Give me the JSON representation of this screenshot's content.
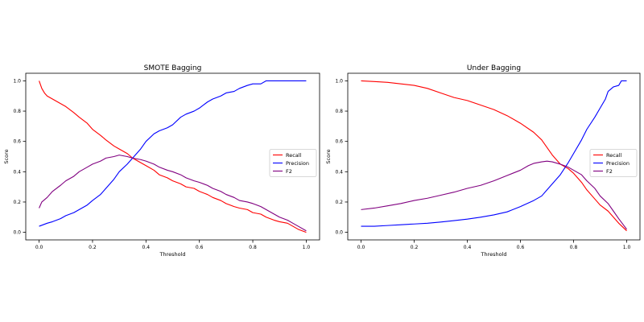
{
  "chart_data": [
    {
      "type": "line",
      "title": "SMOTE Bagging",
      "xlabel": "Threshold",
      "ylabel": "Score",
      "xlim": [
        -0.05,
        1.05
      ],
      "ylim": [
        -0.05,
        1.05
      ],
      "xticks": [
        0.0,
        0.2,
        0.4,
        0.6,
        0.8,
        1.0
      ],
      "yticks": [
        0.0,
        0.2,
        0.4,
        0.6,
        0.8,
        1.0
      ],
      "legend": "center-right",
      "series": [
        {
          "name": "Recall",
          "color": "#ff0000",
          "x": [
            0.0,
            0.01,
            0.02,
            0.03,
            0.05,
            0.07,
            0.1,
            0.13,
            0.15,
            0.18,
            0.2,
            0.23,
            0.25,
            0.28,
            0.3,
            0.33,
            0.35,
            0.38,
            0.4,
            0.43,
            0.45,
            0.48,
            0.5,
            0.53,
            0.55,
            0.58,
            0.6,
            0.63,
            0.65,
            0.68,
            0.7,
            0.73,
            0.75,
            0.78,
            0.8,
            0.83,
            0.85,
            0.88,
            0.9,
            0.93,
            0.95,
            0.97,
            1.0
          ],
          "y": [
            1.0,
            0.95,
            0.92,
            0.9,
            0.88,
            0.86,
            0.83,
            0.79,
            0.76,
            0.72,
            0.68,
            0.64,
            0.61,
            0.57,
            0.55,
            0.52,
            0.49,
            0.46,
            0.44,
            0.41,
            0.38,
            0.36,
            0.34,
            0.32,
            0.3,
            0.29,
            0.27,
            0.25,
            0.23,
            0.21,
            0.19,
            0.17,
            0.16,
            0.15,
            0.13,
            0.12,
            0.1,
            0.08,
            0.07,
            0.06,
            0.04,
            0.02,
            0.0
          ]
        },
        {
          "name": "Precision",
          "color": "#0000ff",
          "x": [
            0.0,
            0.03,
            0.05,
            0.08,
            0.1,
            0.13,
            0.15,
            0.18,
            0.2,
            0.23,
            0.25,
            0.28,
            0.3,
            0.33,
            0.35,
            0.38,
            0.4,
            0.43,
            0.45,
            0.48,
            0.5,
            0.53,
            0.55,
            0.58,
            0.6,
            0.63,
            0.65,
            0.68,
            0.7,
            0.73,
            0.75,
            0.78,
            0.8,
            0.83,
            0.85,
            0.88,
            0.9,
            0.93,
            0.95,
            1.0
          ],
          "y": [
            0.04,
            0.06,
            0.07,
            0.09,
            0.11,
            0.13,
            0.15,
            0.18,
            0.21,
            0.25,
            0.29,
            0.35,
            0.4,
            0.45,
            0.49,
            0.55,
            0.6,
            0.65,
            0.67,
            0.69,
            0.71,
            0.76,
            0.78,
            0.8,
            0.82,
            0.86,
            0.88,
            0.9,
            0.92,
            0.93,
            0.95,
            0.97,
            0.98,
            0.98,
            1.0,
            1.0,
            1.0,
            1.0,
            1.0,
            1.0
          ]
        },
        {
          "name": "F2",
          "color": "#800080",
          "x": [
            0.0,
            0.01,
            0.03,
            0.05,
            0.08,
            0.1,
            0.13,
            0.15,
            0.18,
            0.2,
            0.23,
            0.25,
            0.28,
            0.3,
            0.33,
            0.35,
            0.38,
            0.4,
            0.43,
            0.45,
            0.48,
            0.5,
            0.53,
            0.55,
            0.58,
            0.6,
            0.63,
            0.65,
            0.68,
            0.7,
            0.73,
            0.75,
            0.78,
            0.8,
            0.83,
            0.85,
            0.88,
            0.9,
            0.93,
            0.95,
            0.97,
            1.0
          ],
          "y": [
            0.16,
            0.2,
            0.23,
            0.27,
            0.31,
            0.34,
            0.37,
            0.4,
            0.43,
            0.45,
            0.47,
            0.49,
            0.5,
            0.51,
            0.5,
            0.49,
            0.48,
            0.47,
            0.45,
            0.43,
            0.41,
            0.4,
            0.38,
            0.36,
            0.34,
            0.33,
            0.31,
            0.29,
            0.27,
            0.25,
            0.23,
            0.21,
            0.2,
            0.19,
            0.17,
            0.15,
            0.12,
            0.1,
            0.08,
            0.06,
            0.04,
            0.01
          ]
        }
      ]
    },
    {
      "type": "line",
      "title": "Under Bagging",
      "xlabel": "Threshold",
      "ylabel": "Score",
      "xlim": [
        -0.05,
        1.05
      ],
      "ylim": [
        -0.05,
        1.05
      ],
      "xticks": [
        0.0,
        0.2,
        0.4,
        0.6,
        0.8,
        1.0
      ],
      "yticks": [
        0.0,
        0.2,
        0.4,
        0.6,
        0.8,
        1.0
      ],
      "legend": "center-right",
      "series": [
        {
          "name": "Recall",
          "color": "#ff0000",
          "x": [
            0.0,
            0.05,
            0.1,
            0.15,
            0.2,
            0.25,
            0.3,
            0.35,
            0.4,
            0.45,
            0.5,
            0.55,
            0.6,
            0.65,
            0.68,
            0.7,
            0.72,
            0.75,
            0.78,
            0.8,
            0.83,
            0.85,
            0.88,
            0.9,
            0.93,
            0.95,
            0.97,
            1.0
          ],
          "y": [
            1.0,
            0.995,
            0.99,
            0.98,
            0.97,
            0.95,
            0.92,
            0.89,
            0.87,
            0.84,
            0.81,
            0.77,
            0.72,
            0.66,
            0.61,
            0.56,
            0.51,
            0.45,
            0.42,
            0.39,
            0.33,
            0.28,
            0.22,
            0.18,
            0.14,
            0.1,
            0.06,
            0.01
          ]
        },
        {
          "name": "Precision",
          "color": "#0000ff",
          "x": [
            0.0,
            0.05,
            0.1,
            0.15,
            0.2,
            0.25,
            0.3,
            0.35,
            0.4,
            0.45,
            0.5,
            0.55,
            0.6,
            0.65,
            0.68,
            0.7,
            0.72,
            0.75,
            0.78,
            0.8,
            0.83,
            0.85,
            0.88,
            0.9,
            0.92,
            0.93,
            0.95,
            0.97,
            0.98,
            1.0
          ],
          "y": [
            0.04,
            0.04,
            0.045,
            0.05,
            0.055,
            0.06,
            0.068,
            0.077,
            0.087,
            0.1,
            0.115,
            0.135,
            0.17,
            0.21,
            0.24,
            0.28,
            0.32,
            0.38,
            0.46,
            0.52,
            0.61,
            0.68,
            0.76,
            0.82,
            0.88,
            0.93,
            0.96,
            0.97,
            1.0,
            1.0
          ]
        },
        {
          "name": "F2",
          "color": "#800080",
          "x": [
            0.0,
            0.05,
            0.1,
            0.15,
            0.2,
            0.25,
            0.3,
            0.35,
            0.4,
            0.45,
            0.5,
            0.55,
            0.6,
            0.63,
            0.65,
            0.68,
            0.7,
            0.72,
            0.75,
            0.78,
            0.8,
            0.83,
            0.85,
            0.88,
            0.9,
            0.93,
            0.95,
            0.97,
            1.0
          ],
          "y": [
            0.15,
            0.16,
            0.175,
            0.19,
            0.21,
            0.225,
            0.245,
            0.265,
            0.29,
            0.31,
            0.34,
            0.375,
            0.41,
            0.44,
            0.455,
            0.465,
            0.47,
            0.465,
            0.45,
            0.43,
            0.41,
            0.38,
            0.34,
            0.29,
            0.24,
            0.19,
            0.14,
            0.09,
            0.02
          ]
        }
      ]
    }
  ]
}
